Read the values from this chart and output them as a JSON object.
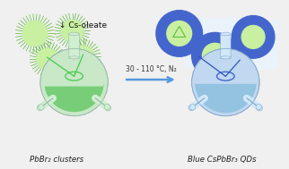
{
  "background_color": "#f0f0f0",
  "arrow_label": "30 - 110 °C, N₂",
  "arrow_color": "#5599dd",
  "cs_oleate_label": "↓ Cs-oleate",
  "left_label": "PbBr₂ clusters",
  "right_label": "Blue CsPbBr₃ QDs",
  "flask_left_body_color": "#c8e8c8",
  "flask_left_body_color2": "#a8d8a8",
  "flask_left_liquid_color": "#70cc70",
  "flask_left_neck_color": "#d0eed0",
  "flask_right_body_top": "#c0d8f0",
  "flask_right_body_bot": "#90c0e0",
  "flask_right_neck_color": "#d0e8f8",
  "ellipse_green": "#55cc55",
  "ellipse_blue": "#4466cc",
  "qd_green_inner": "#c8f0a0",
  "qd_green_mid": "#88cc66",
  "qd_green_spike": "#66bb44",
  "qd_blue_ring": "#4466cc",
  "qd_blue_spike": "#4466cc",
  "qd_white_bg": "#e8f4ff",
  "tri_fill": "#c8f0a0",
  "tri_edge": "#66bb44",
  "line_green": "#44cc44",
  "line_blue": "#3355bb",
  "label_color": "#222222",
  "flask_edge": "#99bbaa",
  "flask_edge_r": "#88aacc"
}
